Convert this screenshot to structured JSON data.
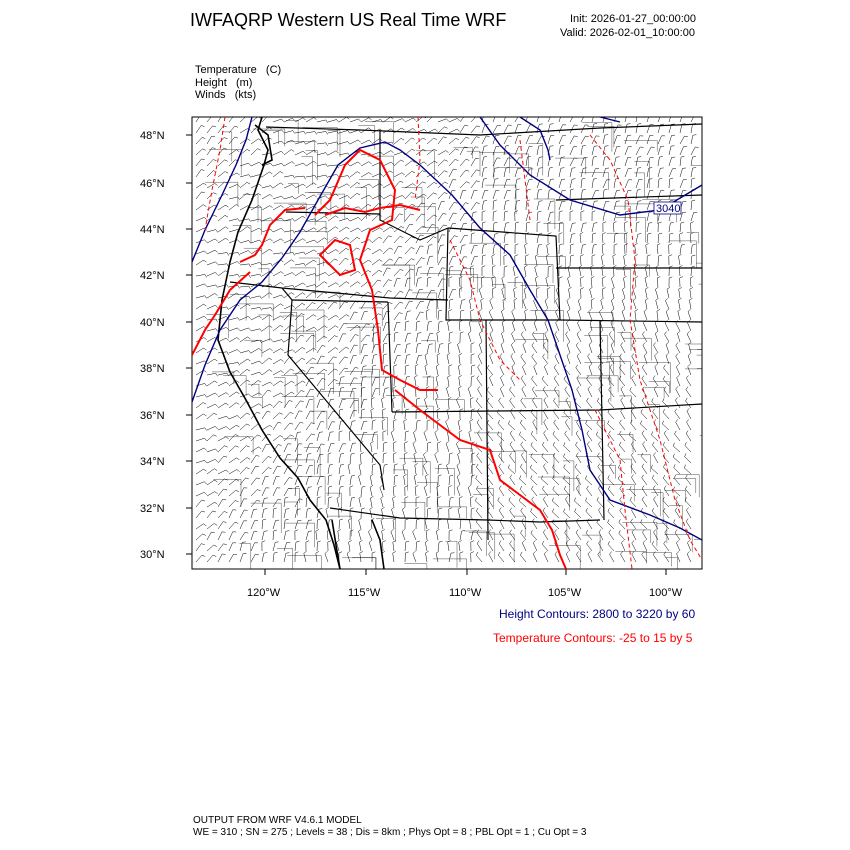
{
  "header": {
    "title": "IWFAQRP Western US Real Time WRF",
    "init": "Init: 2026-01-27_00:00:00",
    "valid": "Valid: 2026-02-01_10:00:00"
  },
  "fields": [
    "Temperature   (C)",
    "Height   (m)",
    "Winds   (kts)"
  ],
  "map": {
    "lat_labels": [
      "48°N",
      "46°N",
      "44°N",
      "42°N",
      "40°N",
      "38°N",
      "36°N",
      "34°N",
      "32°N",
      "30°N"
    ],
    "lon_labels": [
      "120°W",
      "115°W",
      "110°W",
      "105°W",
      "100°W"
    ],
    "contour_label": "3040",
    "colors": {
      "height": "#000080",
      "temperature": "#ff0000",
      "borders": "#000000"
    }
  },
  "legend": {
    "height_contours": "Height Contours: 2800 to 3220 by 60",
    "temperature_contours": "Temperature Contours: -25 to 15 by 5"
  },
  "footer": {
    "line1": "OUTPUT FROM WRF V4.6.1 MODEL",
    "line2": "WE = 310 ; SN = 275 ; Levels = 38 ; Dis = 8km ; Phys Opt = 8 ; PBL Opt = 1 ; Cu Opt = 3"
  }
}
